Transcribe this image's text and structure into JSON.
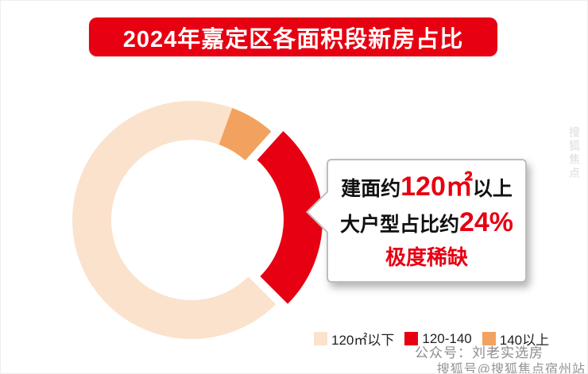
{
  "title_banner": {
    "text": "2024年嘉定区各面积段新房占比"
  },
  "chart_data": {
    "type": "pie",
    "subtype": "exploded-donut",
    "title": "2024年嘉定区各面积段新房占比",
    "unit": "%",
    "segments": [
      {
        "label": "120㎡以下",
        "value": 76,
        "color": "#fbe2cc",
        "start_deg": 135,
        "end_deg": 380,
        "exploded": false
      },
      {
        "label": "120-140",
        "value": 19,
        "color": "#e60012",
        "start_deg": 42,
        "end_deg": 135,
        "exploded": true
      },
      {
        "label": "140以上",
        "value": 5,
        "color": "#f2a25e",
        "start_deg": 20,
        "end_deg": 42,
        "exploded": false
      }
    ],
    "annotation": "建面约120㎡以上大户型占比约24%，极度稀缺",
    "legend_position": "bottom-right",
    "hole_color": "#ffffff"
  },
  "callout": {
    "line1_prefix": "建面约",
    "line1_highlight": "120㎡",
    "line1_suffix": "以上",
    "line2_prefix": "大户型占比约",
    "line2_highlight": "24%",
    "line3": "极度稀缺"
  },
  "legend": {
    "items": [
      {
        "label": "120㎡以下",
        "color": "#fbe2cc"
      },
      {
        "label": "120-140",
        "color": "#e60012"
      },
      {
        "label": "140以上",
        "color": "#f2a25e"
      }
    ]
  },
  "watermarks": {
    "account": "公众号：刘老实选房",
    "platform": "搜狐号@搜狐焦点宿州站",
    "side": "搜狐焦点"
  },
  "colors": {
    "accent": "#e60012",
    "banner_bg": "#e60012",
    "banner_text": "#ffffff",
    "callout_border": "#bdbdbd"
  }
}
